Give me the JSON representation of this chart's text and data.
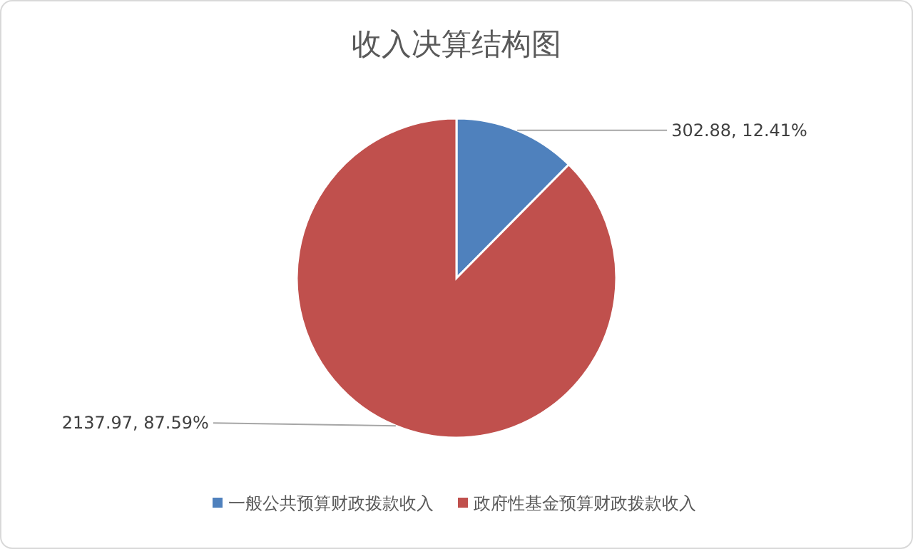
{
  "chart_data": {
    "type": "pie",
    "title": "收入决算结构图",
    "categories": [
      "一般公共预算财政拨款收入",
      "政府性基金预算财政拨款收入"
    ],
    "values": [
      302.88,
      2137.97
    ],
    "colors": [
      "#4f81bd",
      "#c0504d"
    ],
    "value_labels": [
      "302.88, 12.41%",
      "2137.97, 87.59%"
    ],
    "legend": "bottom"
  }
}
